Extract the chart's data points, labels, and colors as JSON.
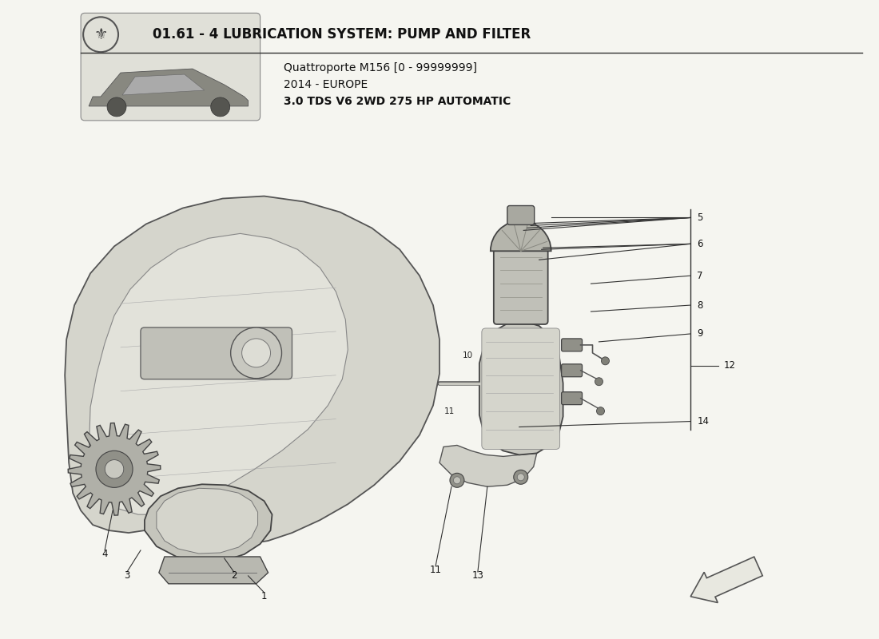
{
  "title": "01.61 - 4 LUBRICATION SYSTEM: PUMP AND FILTER",
  "subtitle_line1": "Quattroporte M156 [0 - 99999999]",
  "subtitle_line2": "2014 - EUROPE",
  "subtitle_line3": "3.0 TDS V6 2WD 275 HP AUTOMATIC",
  "bg_color": "#f5f5f0",
  "line_color": "#333333",
  "part_color": "#444444"
}
